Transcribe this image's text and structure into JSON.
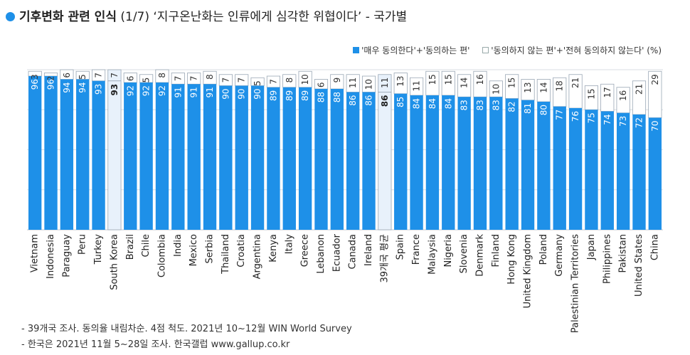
{
  "title": {
    "bold": "기후변화 관련 인식",
    "rest": " (1/7) ‘지구온난화는 인류에게 심각한 위협이다’ - 국가별"
  },
  "legend": {
    "agree": "'매우 동의한다'+'동의하는 편'",
    "disagree": "'동의하지 않는 편'+'전혀 동의하지 않는다' (%)"
  },
  "notes": [
    "- 39개국 조사. 동의율 내림차순. 4점 척도. 2021년 10~12월 WIN World Survey",
    "- 한국은 2021년 11월 5~28일 조사. 한국갤럽 www.gallup.co.kr"
  ],
  "colors": {
    "agree": "#1E90E8",
    "disagree": "#FFFFFF",
    "highlight": "#E8F1FB",
    "border": "#9AA7B5"
  },
  "chart_data": {
    "type": "bar",
    "stacked": true,
    "ylim": [
      0,
      100
    ],
    "categories": [
      "Vietnam",
      "Indonesia",
      "Paraguay",
      "Peru",
      "Turkey",
      "South Korea",
      "Brazil",
      "Chile",
      "Colombia",
      "India",
      "Mexico",
      "Serbia",
      "Thailand",
      "Croatia",
      "Argentina",
      "Kenya",
      "Italy",
      "Greece",
      "Lebanon",
      "Ecuador",
      "Canada",
      "Ireland",
      "39개국 평균",
      "Spain",
      "France",
      "Malaysia",
      "Nigeria",
      "Slovenia",
      "Denmark",
      "Finland",
      "Hong Kong",
      "United Kingdom",
      "Poland",
      "Germany",
      "Palestinian Territories",
      "Japan",
      "Philippines",
      "Pakistan",
      "United States",
      "China"
    ],
    "highlighted": [
      "South Korea",
      "39개국 평균"
    ],
    "series": [
      {
        "name": "'매우 동의한다'+'동의하는 편'",
        "values": [
          96,
          96,
          94,
          94,
          93,
          93,
          92,
          92,
          92,
          91,
          91,
          91,
          90,
          90,
          90,
          89,
          89,
          89,
          88,
          88,
          86,
          86,
          86,
          85,
          84,
          84,
          84,
          83,
          83,
          83,
          82,
          81,
          80,
          77,
          76,
          75,
          74,
          73,
          72,
          70
        ]
      },
      {
        "name": "'동의하지 않는 편'+'전혀 동의하지 않는다'",
        "values": [
          3,
          2,
          6,
          5,
          7,
          7,
          6,
          5,
          8,
          7,
          7,
          8,
          7,
          7,
          5,
          7,
          8,
          10,
          6,
          9,
          11,
          10,
          11,
          13,
          11,
          15,
          15,
          14,
          16,
          10,
          15,
          13,
          14,
          18,
          21,
          15,
          17,
          16,
          21,
          29
        ]
      }
    ]
  }
}
